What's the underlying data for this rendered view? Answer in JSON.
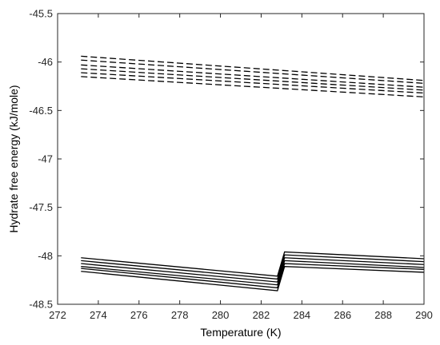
{
  "chart_data": {
    "type": "line",
    "xlabel": "Temperature (K)",
    "ylabel": "Hydrate free energy (kJ/mole)",
    "xlim": [
      272,
      290
    ],
    "ylim": [
      -48.5,
      -45.5
    ],
    "xticks": [
      272,
      274,
      276,
      278,
      280,
      282,
      284,
      286,
      288,
      290
    ],
    "yticks": [
      -45.5,
      -46,
      -46.5,
      -47,
      -47.5,
      -48,
      -48.5
    ],
    "xtick_labels": [
      "272",
      "274",
      "276",
      "278",
      "280",
      "282",
      "284",
      "286",
      "288",
      "290"
    ],
    "ytick_labels": [
      "-45.5",
      "-46",
      "-46.5",
      "-47",
      "-47.5",
      "-48",
      "-48.5"
    ],
    "grid": false,
    "box": true,
    "series": [
      {
        "style": "dashed",
        "color": "#000000",
        "x": [
          273.15,
          290
        ],
        "y": [
          -45.94,
          -46.19
        ]
      },
      {
        "style": "dashed",
        "color": "#000000",
        "x": [
          273.15,
          290
        ],
        "y": [
          -45.98,
          -46.22
        ]
      },
      {
        "style": "dashed",
        "color": "#000000",
        "x": [
          273.15,
          290
        ],
        "y": [
          -46.03,
          -46.26
        ]
      },
      {
        "style": "dashed",
        "color": "#000000",
        "x": [
          273.15,
          290
        ],
        "y": [
          -46.07,
          -46.29
        ]
      },
      {
        "style": "dashed",
        "color": "#000000",
        "x": [
          273.15,
          290
        ],
        "y": [
          -46.11,
          -46.32
        ]
      },
      {
        "style": "dashed",
        "color": "#000000",
        "x": [
          273.15,
          290
        ],
        "y": [
          -46.15,
          -46.36
        ]
      },
      {
        "style": "solid",
        "color": "#000000",
        "x": [
          273.15,
          282.8,
          283.15,
          290
        ],
        "y": [
          -48.02,
          -48.21,
          -47.96,
          -48.03
        ]
      },
      {
        "style": "solid",
        "color": "#000000",
        "x": [
          273.15,
          282.8,
          283.15,
          290
        ],
        "y": [
          -48.05,
          -48.24,
          -47.99,
          -48.06
        ]
      },
      {
        "style": "solid",
        "color": "#000000",
        "x": [
          273.15,
          282.8,
          283.15,
          290
        ],
        "y": [
          -48.08,
          -48.27,
          -48.02,
          -48.09
        ]
      },
      {
        "style": "solid",
        "color": "#000000",
        "x": [
          273.15,
          282.8,
          283.15,
          290
        ],
        "y": [
          -48.11,
          -48.3,
          -48.05,
          -48.12
        ]
      },
      {
        "style": "solid",
        "color": "#000000",
        "x": [
          273.15,
          282.8,
          283.15,
          290
        ],
        "y": [
          -48.13,
          -48.33,
          -48.08,
          -48.14
        ]
      },
      {
        "style": "solid",
        "color": "#000000",
        "x": [
          273.15,
          282.8,
          283.15,
          290
        ],
        "y": [
          -48.16,
          -48.36,
          -48.11,
          -48.17
        ]
      }
    ]
  }
}
